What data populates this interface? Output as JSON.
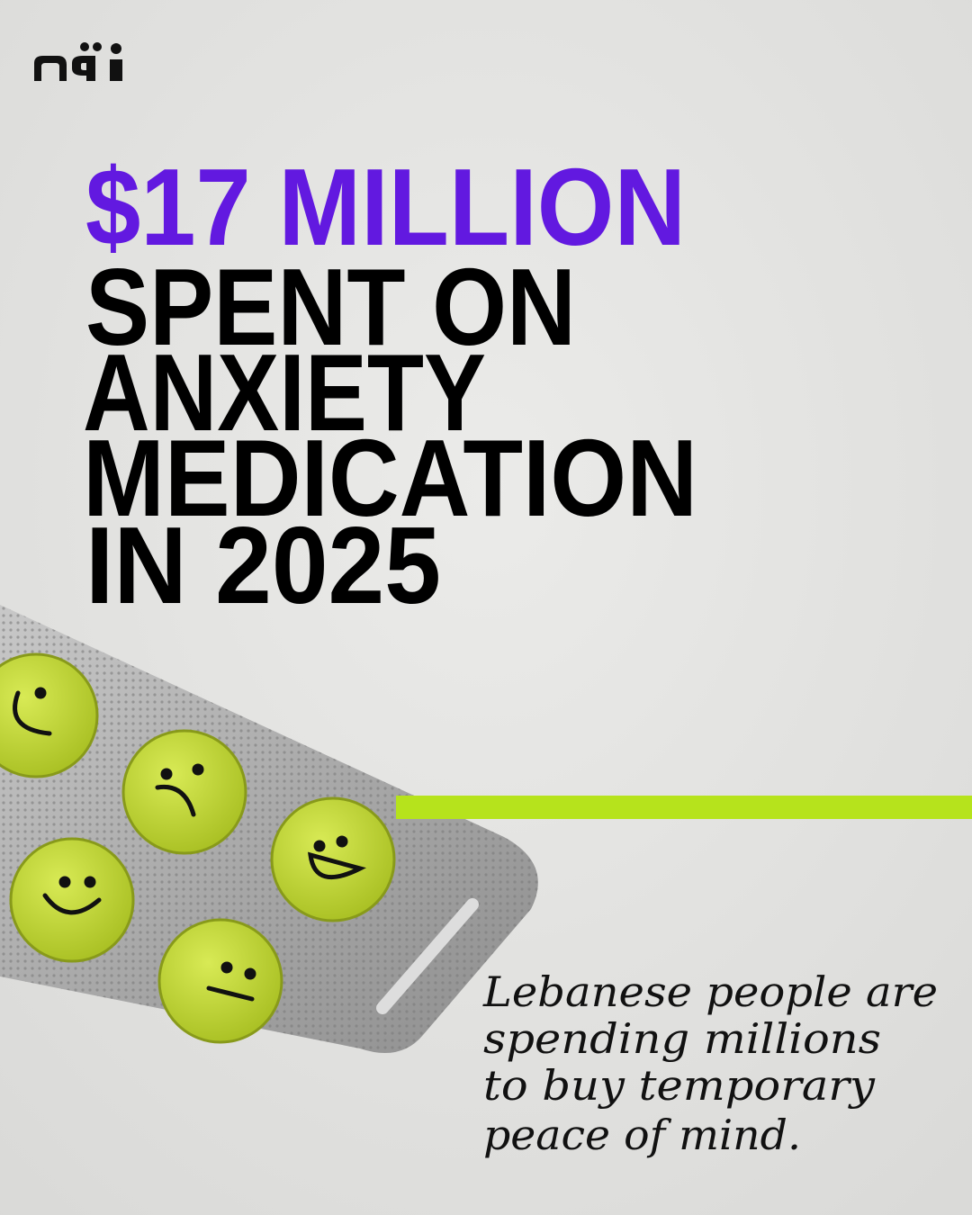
{
  "headline": {
    "amount": "$17 MILLION",
    "lines": [
      "SPENT ON",
      "ANXIETY",
      "MEDICATION",
      "IN 2025"
    ]
  },
  "caption": [
    "Lebanese people are",
    "spending millions",
    "to buy temporary",
    "peace of mind."
  ]
}
